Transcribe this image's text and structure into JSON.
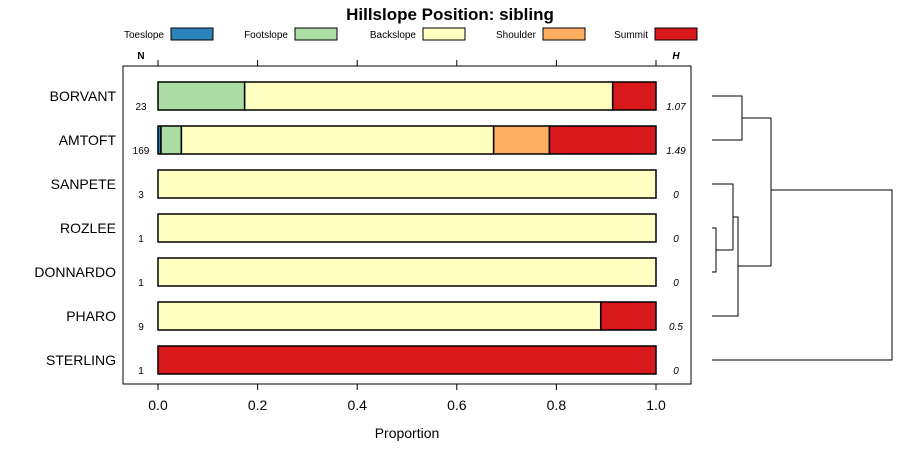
{
  "chart_data": {
    "type": "bar",
    "title": "Hillslope Position: sibling",
    "xlabel": "Proportion",
    "xlim": [
      0,
      1
    ],
    "xticks": [
      "0.0",
      "0.2",
      "0.4",
      "0.6",
      "0.8",
      "1.0"
    ],
    "n_header": "N",
    "h_header": "H",
    "series": [
      {
        "name": "Toeslope",
        "color": "#2B83BA"
      },
      {
        "name": "Footslope",
        "color": "#ABDDA4"
      },
      {
        "name": "Backslope",
        "color": "#FFFFBF"
      },
      {
        "name": "Shoulder",
        "color": "#FDAE61"
      },
      {
        "name": "Summit",
        "color": "#D7191C"
      }
    ],
    "categories": [
      "BORVANT",
      "AMTOFT",
      "SANPETE",
      "ROZLEE",
      "DONNARDO",
      "PHARO",
      "STERLING"
    ],
    "n": [
      "23",
      "169",
      "3",
      "1",
      "1",
      "9",
      "1"
    ],
    "h": [
      "1.07",
      "1.49",
      "0",
      "0",
      "0",
      "0.5",
      "0"
    ],
    "proportions": [
      [
        0,
        0.174,
        0.739,
        0,
        0.087
      ],
      [
        0.006,
        0.041,
        0.627,
        0.112,
        0.214
      ],
      [
        0,
        0,
        1,
        0,
        0
      ],
      [
        0,
        0,
        1,
        0,
        0
      ],
      [
        0,
        0,
        1,
        0,
        0
      ],
      [
        0,
        0,
        0.889,
        0,
        0.111
      ],
      [
        0,
        0,
        0,
        0,
        1
      ]
    ],
    "legend": "top",
    "grid": false
  }
}
